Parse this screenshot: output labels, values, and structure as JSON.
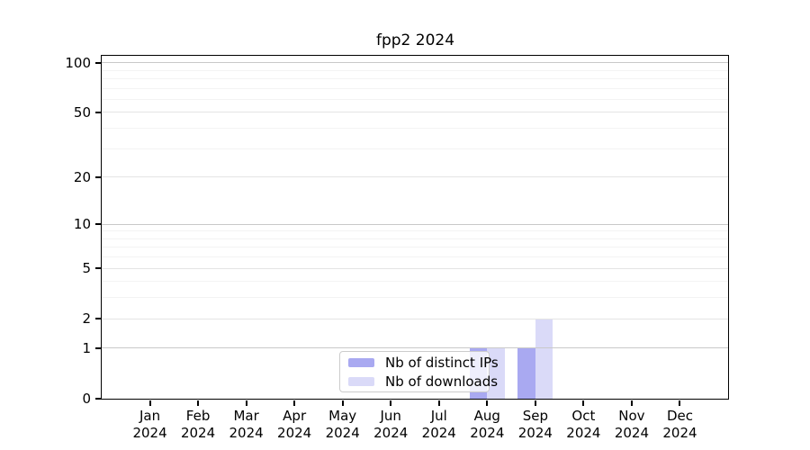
{
  "title": "fpp2 2024",
  "chart_data": {
    "type": "bar",
    "title": "fpp2 2024",
    "x": [
      "Jan 2024",
      "Feb 2024",
      "Mar 2024",
      "Apr 2024",
      "May 2024",
      "Jun 2024",
      "Jul 2024",
      "Aug 2024",
      "Sep 2024",
      "Oct 2024",
      "Nov 2024",
      "Dec 2024"
    ],
    "series": [
      {
        "name": "Nb of distinct IPs",
        "color": "#a9a9f1",
        "values": [
          0,
          0,
          0,
          0,
          0,
          0,
          0,
          1,
          1,
          0,
          0,
          0
        ]
      },
      {
        "name": "Nb of downloads",
        "color": "#dadaf8",
        "values": [
          0,
          0,
          0,
          0,
          0,
          0,
          0,
          1,
          2,
          0,
          0,
          0
        ]
      }
    ],
    "yscale": "log1p",
    "ylim": [
      0,
      110
    ],
    "yticks": [
      0,
      1,
      2,
      5,
      10,
      20,
      50,
      100
    ],
    "gridlines": {
      "strong": [
        1,
        10,
        100
      ],
      "medium": [
        2,
        5,
        20,
        50
      ],
      "weak": [
        3,
        4,
        6,
        7,
        8,
        9,
        30,
        40,
        60,
        70,
        80,
        90
      ]
    },
    "grid": "horizontal",
    "legend_position": "inside-bottom-center",
    "xlabel": "",
    "ylabel": ""
  },
  "legend": {
    "items": [
      "Nb of distinct IPs",
      "Nb of downloads"
    ]
  },
  "colors": {
    "background": "#ffffff",
    "axis": "#000000",
    "text": "#000000",
    "grid_strong": "#c9c9c9",
    "grid_medium": "#e4e4e4",
    "grid_weak": "#f3f3f3",
    "legend_border": "#cccccc",
    "legend_bg": "rgba(255,255,255,0.8)"
  }
}
